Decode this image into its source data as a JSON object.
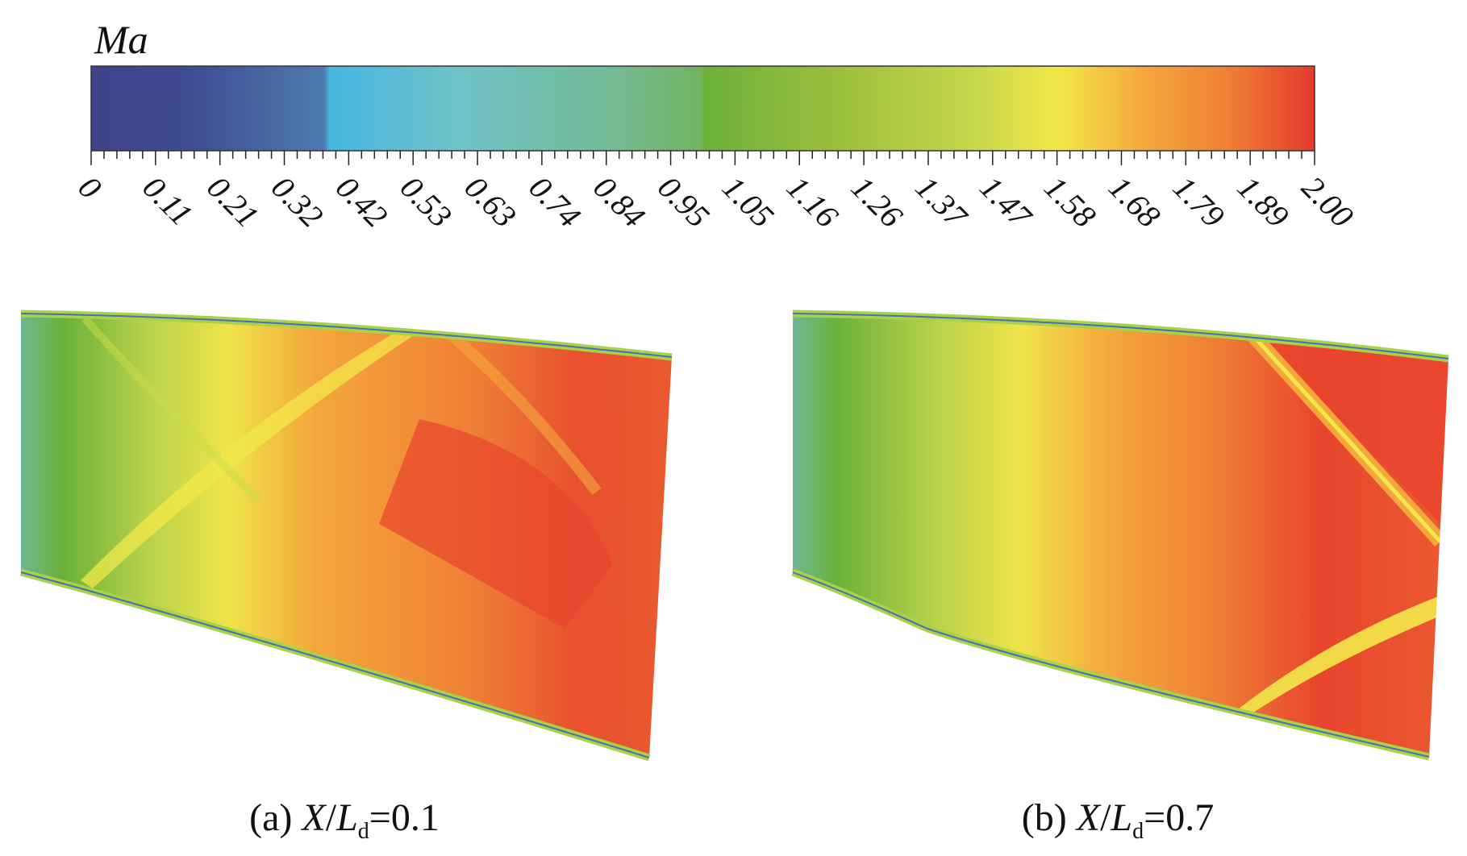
{
  "chart_data": {
    "type": "heatmap",
    "colorbar": {
      "title": "Ma",
      "range": [
        0,
        2.0
      ],
      "tick_labels": [
        "0",
        "0.11",
        "0.21",
        "0.32",
        "0.42",
        "0.53",
        "0.63",
        "0.74",
        "0.84",
        "0.95",
        "1.05",
        "1.16",
        "1.26",
        "1.37",
        "1.47",
        "1.58",
        "1.68",
        "1.79",
        "1.89",
        "2.00"
      ],
      "colors": [
        "#3d438a",
        "#4a62a0",
        "#45b6e0",
        "#6fc0c6",
        "#74bb98",
        "#6fb15a",
        "#73b43c",
        "#a6c13b",
        "#cfdb4a",
        "#f2e84a",
        "#f4a83c",
        "#f08a35",
        "#e8482f",
        "#e53a2c"
      ]
    },
    "panels": [
      {
        "label_prefix": "(a) ",
        "var_x": "X",
        "slash": "/",
        "var_l": "L",
        "sub": "d",
        "value": "=0.1"
      },
      {
        "label_prefix": "(b) ",
        "var_x": "X",
        "slash": "/",
        "var_l": "L",
        "sub": "d",
        "value": "=0.7"
      }
    ]
  }
}
